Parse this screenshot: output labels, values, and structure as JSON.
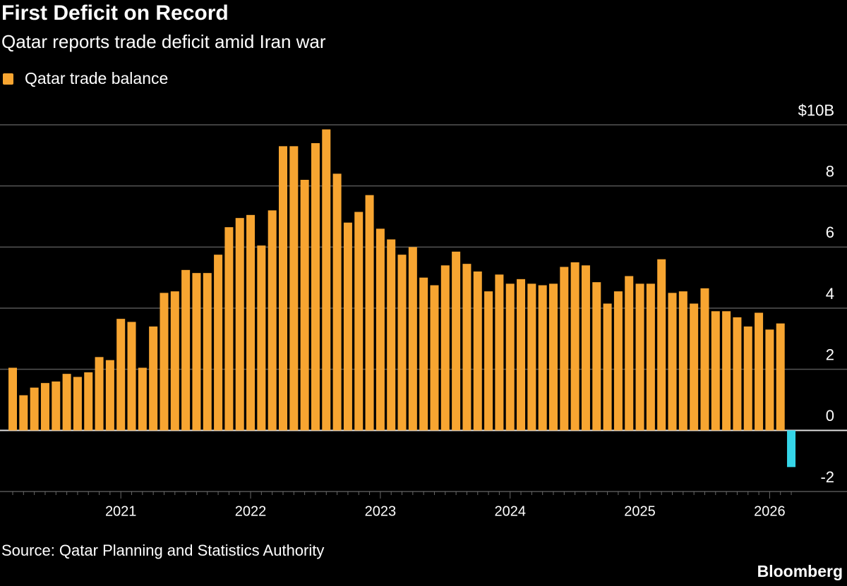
{
  "chart_data": {
    "type": "bar",
    "title": "First Deficit on Record",
    "subtitle": "Qatar reports trade deficit amid Iran war",
    "source": "Source: Qatar Planning and Statistics Authority",
    "brand": "Bloomberg",
    "series": [
      {
        "name": "Qatar trade balance",
        "color": "#f7a531",
        "negative_color": "#35d5e8",
        "values": [
          2.05,
          1.15,
          1.4,
          1.55,
          1.6,
          1.85,
          1.75,
          1.9,
          2.4,
          2.3,
          3.65,
          3.55,
          2.05,
          3.4,
          4.5,
          4.55,
          5.25,
          5.15,
          5.15,
          5.75,
          6.65,
          6.95,
          7.05,
          6.05,
          7.2,
          9.3,
          9.3,
          8.2,
          9.4,
          9.85,
          8.4,
          6.8,
          7.15,
          7.7,
          6.6,
          6.25,
          5.75,
          6.0,
          5.0,
          4.75,
          5.4,
          5.85,
          5.45,
          5.2,
          4.55,
          5.1,
          4.8,
          4.95,
          4.8,
          4.75,
          4.8,
          5.35,
          5.5,
          5.4,
          4.85,
          4.15,
          4.55,
          5.05,
          4.8,
          4.8,
          5.6,
          4.5,
          4.55,
          4.15,
          4.65,
          3.9,
          3.9,
          3.7,
          3.4,
          3.85,
          3.3,
          3.5,
          -1.2
        ]
      }
    ],
    "categories": [
      null,
      null,
      null,
      null,
      null,
      null,
      null,
      null,
      null,
      null,
      "2021",
      null,
      null,
      null,
      null,
      null,
      null,
      null,
      null,
      null,
      null,
      null,
      "2022",
      null,
      null,
      null,
      null,
      null,
      null,
      null,
      null,
      null,
      null,
      null,
      "2023",
      null,
      null,
      null,
      null,
      null,
      null,
      null,
      null,
      null,
      null,
      null,
      "2024",
      null,
      null,
      null,
      null,
      null,
      null,
      null,
      null,
      null,
      null,
      null,
      "2025",
      null,
      null,
      null,
      null,
      null,
      null,
      null,
      null,
      null,
      null,
      null,
      "2026",
      null,
      null
    ],
    "ylim": [
      -2,
      10
    ],
    "yticks": [
      -2,
      0,
      2,
      4,
      6,
      8,
      {
        "value": 10,
        "label": "$10B"
      }
    ],
    "grid": true
  }
}
